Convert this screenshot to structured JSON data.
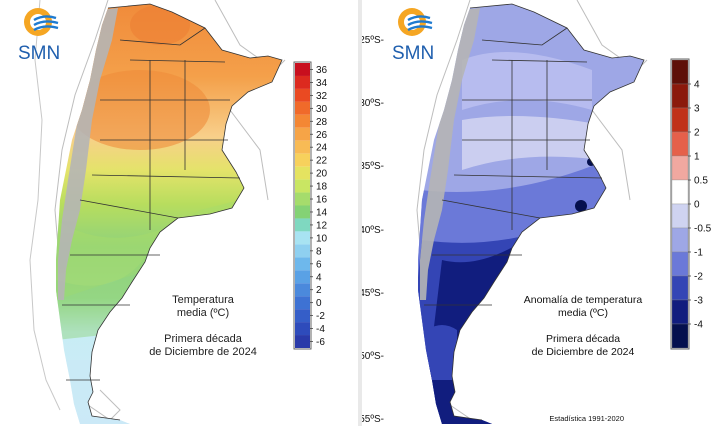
{
  "left_map": {
    "logo_text": "SMN",
    "title_line1": "Temperatura",
    "title_line2": "media (ºC)",
    "period_line1": "Primera década",
    "period_line2": "de Diciembre de 2024",
    "legend": {
      "labels": [
        "36",
        "34",
        "32",
        "30",
        "28",
        "26",
        "24",
        "22",
        "20",
        "18",
        "16",
        "14",
        "12",
        "10",
        "8",
        "6",
        "4",
        "2",
        "0",
        "-2",
        "-4",
        "-6"
      ],
      "colors": [
        "#c80f1e",
        "#dc2a1f",
        "#ea4a22",
        "#f06a2a",
        "#f48734",
        "#f6a447",
        "#f8bb55",
        "#f7d15c",
        "#e5e360",
        "#c9e663",
        "#a5dc6c",
        "#84d275",
        "#7fd8c0",
        "#a8e3f2",
        "#8fd0f0",
        "#6eb8ec",
        "#5aa1e5",
        "#4b89dc",
        "#3e72d3",
        "#355ec8",
        "#2e4bbb",
        "#2a3aa9"
      ]
    }
  },
  "right_map": {
    "logo_text": "SMN",
    "title_line1": "Anomalía de temperatura",
    "title_line2": "media (ºC)",
    "period_line1": "Primera década",
    "period_line2": "de Diciembre de 2024",
    "footnote": "Estadística 1991-2020",
    "lat_labels": [
      "25ºS-",
      "30ºS-",
      "35ºS-",
      "40ºS-",
      "45ºS-",
      "50ºS-",
      "55ºS-"
    ],
    "legend": {
      "labels": [
        "4",
        "3",
        "2",
        "1",
        "0.5",
        "0",
        "-0.5",
        "-1",
        "-2",
        "-3",
        "-4"
      ],
      "colors": [
        "#5e1008",
        "#8b1a0c",
        "#c0321a",
        "#e5604a",
        "#f1a8a0",
        "#ffffff",
        "#cfd3f1",
        "#9ea7e6",
        "#6b79d8",
        "#3445b5",
        "#111d7e",
        "#05104e"
      ]
    }
  }
}
